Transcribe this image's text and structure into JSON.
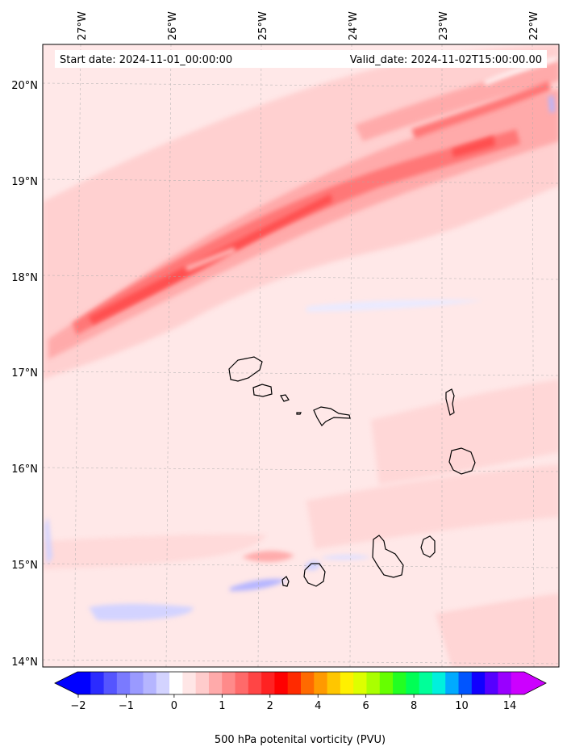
{
  "header": {
    "start_date": "Start date: 2024-11-01_00:00:00",
    "valid_date": "Valid_date: 2024-11-02T15:00:00.00"
  },
  "axes": {
    "lon_labels": [
      "27°W",
      "26°W",
      "25°W",
      "24°W",
      "23°W",
      "22°W"
    ],
    "lat_labels": [
      "20°N",
      "19°N",
      "18°N",
      "17°N",
      "16°N",
      "15°N",
      "14°N"
    ]
  },
  "colorbar": {
    "label": "500 hPa potenital vorticity (PVU)",
    "tick_labels": [
      "−2",
      "−1",
      "0",
      "1",
      "2",
      "4",
      "6",
      "8",
      "10",
      "14"
    ],
    "colors": [
      "#0000ff",
      "#2b2bff",
      "#5555ff",
      "#7a7aff",
      "#9a9aff",
      "#b5b5ff",
      "#d3d3ff",
      "#ffffff",
      "#ffe6e6",
      "#ffcccc",
      "#ffaaaa",
      "#ff8a8a",
      "#ff6a6a",
      "#ff4545",
      "#ff2222",
      "#ff0000",
      "#ff2a00",
      "#ff6a00",
      "#ff9a00",
      "#ffc600",
      "#fff000",
      "#ddff00",
      "#aaff00",
      "#66ff00",
      "#22ff22",
      "#00ff55",
      "#00ff99",
      "#00f0dd",
      "#00aaff",
      "#0055ff",
      "#1100ff",
      "#5500ff",
      "#9900ff",
      "#cc00ff"
    ],
    "under_color": "#0000ff",
    "over_color": "#cc00ff"
  },
  "map": {
    "lon_range": [
      -27.35,
      -21.7
    ],
    "lat_range": [
      13.95,
      20.42
    ],
    "background_color": "#ffe8e8",
    "islands": [
      "Santo Antão",
      "São Vicente",
      "Santa Luzia",
      "São Nicolau",
      "Sal",
      "Boa Vista",
      "Maio",
      "Santiago",
      "Fogo",
      "Brava"
    ]
  }
}
